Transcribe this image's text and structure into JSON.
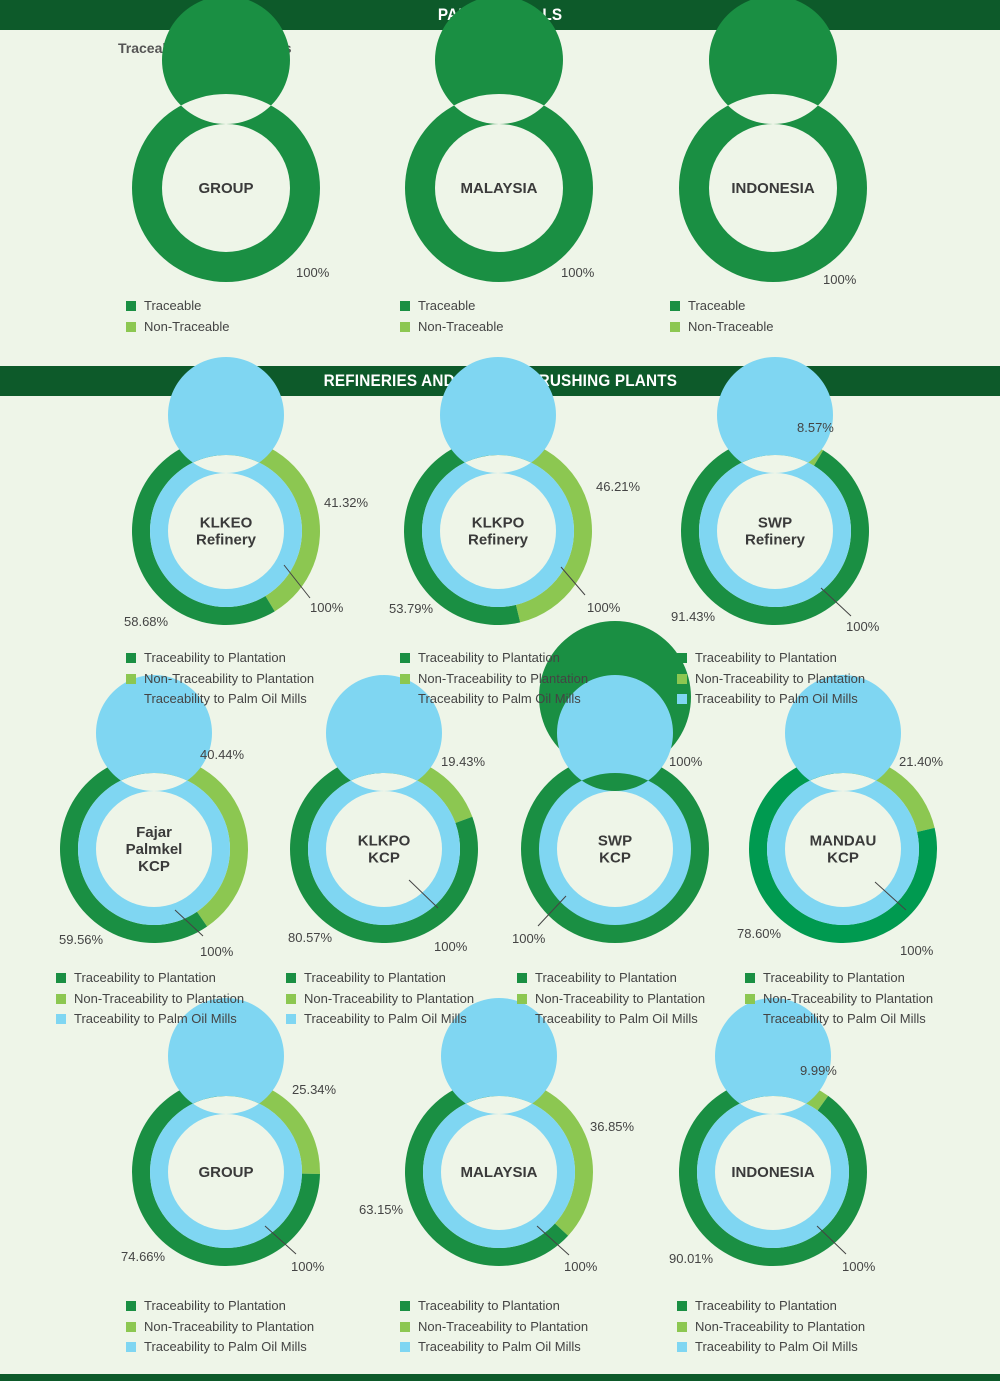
{
  "banners": {
    "palm_oil_mills": "PALM OIL MILLS",
    "refineries": "REFINERIES AND KERNEL CRUSHING PLANTS"
  },
  "subtitle": "Traceability to Plantations",
  "colors": {
    "traceable": "#1a8f43",
    "non_traceable": "#8cc751",
    "palm_oil_mills": "#7fd6f2",
    "mandau_traceable": "#009a50",
    "center": "#eef5e8",
    "banner": "#0d5a2a",
    "label": "#444444"
  },
  "legends": {
    "mills": [
      "Traceable",
      "Non-Traceable"
    ],
    "plants": [
      "Traceability to Plantation",
      "Non-Traceability to Plantation",
      "Traceability to Palm Oil Mills"
    ]
  },
  "chart_data": [
    {
      "type": "pie",
      "title": "GROUP",
      "series": [
        {
          "name": "Traceable",
          "values": [
            100
          ]
        },
        {
          "name": "Non-Traceable",
          "values": [
            0
          ]
        }
      ],
      "labels": {
        "traceable": "100%"
      }
    },
    {
      "type": "pie",
      "title": "MALAYSIA",
      "series": [
        {
          "name": "Traceable",
          "values": [
            100
          ]
        },
        {
          "name": "Non-Traceable",
          "values": [
            0
          ]
        }
      ],
      "labels": {
        "traceable": "100%"
      }
    },
    {
      "type": "pie",
      "title": "INDONESIA",
      "series": [
        {
          "name": "Traceable",
          "values": [
            100
          ]
        },
        {
          "name": "Non-Traceable",
          "values": [
            0
          ]
        }
      ],
      "labels": {
        "traceable": "100%"
      }
    },
    {
      "type": "pie",
      "title": "KLKEO\nRefinery",
      "traceable": 58.68,
      "non_traceable": 41.32,
      "palm_oil_mills": 100,
      "labels": {
        "traceable": "58.68%",
        "non_traceable": "41.32%",
        "palm_oil_mills": "100%"
      }
    },
    {
      "type": "pie",
      "title": "KLKPO\nRefinery",
      "traceable": 53.79,
      "non_traceable": 46.21,
      "palm_oil_mills": 100,
      "labels": {
        "traceable": "53.79%",
        "non_traceable": "46.21%",
        "palm_oil_mills": "100%"
      }
    },
    {
      "type": "pie",
      "title": "SWP\nRefinery",
      "traceable": 91.43,
      "non_traceable": 8.57,
      "palm_oil_mills": 100,
      "labels": {
        "traceable": "91.43%",
        "non_traceable": "8.57%",
        "palm_oil_mills": "100%"
      }
    },
    {
      "type": "pie",
      "title": "Fajar\nPalmkel\nKCP",
      "traceable": 59.56,
      "non_traceable": 40.44,
      "palm_oil_mills": 100,
      "labels": {
        "traceable": "59.56%",
        "non_traceable": "40.44%",
        "palm_oil_mills": "100%"
      }
    },
    {
      "type": "pie",
      "title": "KLKPO\nKCP",
      "traceable": 80.57,
      "non_traceable": 19.43,
      "palm_oil_mills": 100,
      "labels": {
        "traceable": "80.57%",
        "non_traceable": "19.43%",
        "palm_oil_mills": "100%"
      }
    },
    {
      "type": "pie",
      "title": "SWP\nKCP",
      "traceable": 100,
      "non_traceable": 0,
      "palm_oil_mills": 100,
      "labels": {
        "traceable": "100%",
        "palm_oil_mills": "100%"
      }
    },
    {
      "type": "pie",
      "title": "MANDAU\nKCP",
      "traceable": 78.6,
      "non_traceable": 21.4,
      "palm_oil_mills": 100,
      "labels": {
        "traceable": "78.60%",
        "non_traceable": "21.40%",
        "palm_oil_mills": "100%"
      }
    },
    {
      "type": "pie",
      "title": "GROUP",
      "traceable": 74.66,
      "non_traceable": 25.34,
      "palm_oil_mills": 100,
      "labels": {
        "traceable": "74.66%",
        "non_traceable": "25.34%",
        "palm_oil_mills": "100%"
      }
    },
    {
      "type": "pie",
      "title": "MALAYSIA",
      "traceable": 63.15,
      "non_traceable": 36.85,
      "palm_oil_mills": 100,
      "labels": {
        "traceable": "63.15%",
        "non_traceable": "36.85%",
        "palm_oil_mills": "100%"
      }
    },
    {
      "type": "pie",
      "title": "INDONESIA",
      "traceable": 90.01,
      "non_traceable": 9.99,
      "palm_oil_mills": 100,
      "labels": {
        "traceable": "90.01%",
        "non_traceable": "9.99%",
        "palm_oil_mills": "100%"
      }
    }
  ]
}
